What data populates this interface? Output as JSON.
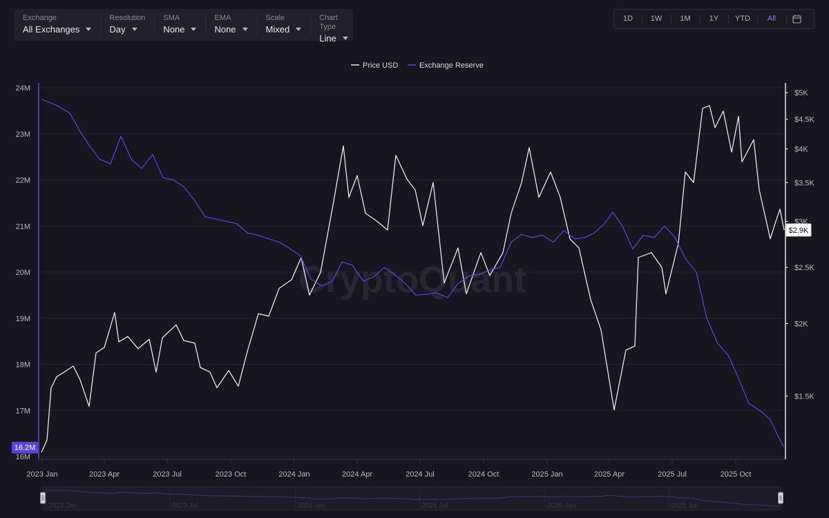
{
  "filters": [
    {
      "label": "Exchange",
      "value": "All Exchanges"
    },
    {
      "label": "Resolution",
      "value": "Day"
    },
    {
      "label": "SMA",
      "value": "None"
    },
    {
      "label": "EMA",
      "value": "None"
    },
    {
      "label": "Scale",
      "value": "Mixed"
    },
    {
      "label": "Chart Type",
      "value": "Line"
    }
  ],
  "ranges": [
    "1D",
    "1W",
    "1M",
    "1Y",
    "YTD",
    "All"
  ],
  "active_range": "All",
  "watermark": "CryptoQuant",
  "chart_data": {
    "type": "line",
    "legend": [
      "Price USD",
      "Exchange Reserve"
    ],
    "x_ticks": [
      "2023 Jan",
      "2023 Apr",
      "2023 Jul",
      "2023 Oct",
      "2024 Jan",
      "2024 Apr",
      "2024 Jul",
      "2024 Oct",
      "2025 Jan",
      "2025 Apr",
      "2025 Jul",
      "2025 Oct"
    ],
    "x_tick_dates": [
      "2023-01-01",
      "2023-04-01",
      "2023-07-01",
      "2023-10-01",
      "2024-01-01",
      "2024-04-01",
      "2024-07-01",
      "2024-10-01",
      "2025-01-01",
      "2025-04-01",
      "2025-07-01",
      "2025-10-01"
    ],
    "xlim": [
      "2022-12-27",
      "2025-12-12"
    ],
    "left_axis": {
      "ticks": [
        "16M",
        "17M",
        "18M",
        "19M",
        "20M",
        "21M",
        "22M",
        "23M",
        "24M"
      ],
      "tick_values": [
        16,
        17,
        18,
        19,
        20,
        21,
        22,
        23,
        24
      ],
      "range": [
        16,
        24
      ],
      "unit": "M",
      "current_label": "16.2M",
      "current_value": 16.2
    },
    "right_axis": {
      "ticks": [
        "$1.5K",
        "$2K",
        "$2.5K",
        "$3K",
        "$3.5K",
        "$4K",
        "$4.5K",
        "$5K"
      ],
      "tick_values": [
        1500,
        2000,
        2500,
        3000,
        3500,
        4000,
        4500,
        5000
      ],
      "scale": "log",
      "range": [
        1180,
        5100
      ],
      "current_label": "$2.9K",
      "current_value": 2900
    },
    "navigator_ticks": [
      "2023 Jan",
      "2023 Jul",
      "2024 Jan",
      "2024 Jul",
      "2025 Jan",
      "2025 Jul"
    ],
    "navigator_tick_dates": [
      "2023-01-01",
      "2023-07-01",
      "2024-01-01",
      "2024-07-01",
      "2025-01-01",
      "2025-07-01"
    ],
    "series": [
      {
        "name": "Price USD",
        "color": "#e8e8ec",
        "axis": "right",
        "points": [
          [
            "2022-12-31",
            1200
          ],
          [
            "2023-01-08",
            1260
          ],
          [
            "2023-01-14",
            1550
          ],
          [
            "2023-01-22",
            1620
          ],
          [
            "2023-02-02",
            1650
          ],
          [
            "2023-02-15",
            1690
          ],
          [
            "2023-02-25",
            1600
          ],
          [
            "2023-03-10",
            1440
          ],
          [
            "2023-03-20",
            1780
          ],
          [
            "2023-04-01",
            1820
          ],
          [
            "2023-04-16",
            2090
          ],
          [
            "2023-04-22",
            1860
          ],
          [
            "2023-05-05",
            1900
          ],
          [
            "2023-05-20",
            1810
          ],
          [
            "2023-06-05",
            1880
          ],
          [
            "2023-06-15",
            1650
          ],
          [
            "2023-06-24",
            1890
          ],
          [
            "2023-07-14",
            1990
          ],
          [
            "2023-07-25",
            1870
          ],
          [
            "2023-08-10",
            1850
          ],
          [
            "2023-08-18",
            1680
          ],
          [
            "2023-09-01",
            1650
          ],
          [
            "2023-09-11",
            1550
          ],
          [
            "2023-09-28",
            1660
          ],
          [
            "2023-10-12",
            1560
          ],
          [
            "2023-10-25",
            1790
          ],
          [
            "2023-11-10",
            2080
          ],
          [
            "2023-11-25",
            2060
          ],
          [
            "2023-12-10",
            2300
          ],
          [
            "2023-12-28",
            2380
          ],
          [
            "2024-01-11",
            2600
          ],
          [
            "2024-01-23",
            2240
          ],
          [
            "2024-02-08",
            2450
          ],
          [
            "2024-02-26",
            3200
          ],
          [
            "2024-03-12",
            4050
          ],
          [
            "2024-03-20",
            3300
          ],
          [
            "2024-04-01",
            3600
          ],
          [
            "2024-04-13",
            3100
          ],
          [
            "2024-04-30",
            3000
          ],
          [
            "2024-05-15",
            2900
          ],
          [
            "2024-05-27",
            3900
          ],
          [
            "2024-06-12",
            3550
          ],
          [
            "2024-06-24",
            3400
          ],
          [
            "2024-07-05",
            2950
          ],
          [
            "2024-07-20",
            3500
          ],
          [
            "2024-08-05",
            2350
          ],
          [
            "2024-08-25",
            2700
          ],
          [
            "2024-09-06",
            2250
          ],
          [
            "2024-09-27",
            2650
          ],
          [
            "2024-10-10",
            2420
          ],
          [
            "2024-10-29",
            2650
          ],
          [
            "2024-11-10",
            3100
          ],
          [
            "2024-11-25",
            3500
          ],
          [
            "2024-12-06",
            4020
          ],
          [
            "2024-12-20",
            3300
          ],
          [
            "2025-01-06",
            3650
          ],
          [
            "2025-01-20",
            3300
          ],
          [
            "2025-02-03",
            2800
          ],
          [
            "2025-02-16",
            2700
          ],
          [
            "2025-03-05",
            2200
          ],
          [
            "2025-03-20",
            1950
          ],
          [
            "2025-04-08",
            1420
          ],
          [
            "2025-04-25",
            1800
          ],
          [
            "2025-05-08",
            1830
          ],
          [
            "2025-05-13",
            2600
          ],
          [
            "2025-06-01",
            2650
          ],
          [
            "2025-06-16",
            2500
          ],
          [
            "2025-06-22",
            2250
          ],
          [
            "2025-07-10",
            2750
          ],
          [
            "2025-07-20",
            3650
          ],
          [
            "2025-08-01",
            3500
          ],
          [
            "2025-08-14",
            4700
          ],
          [
            "2025-08-24",
            4750
          ],
          [
            "2025-09-01",
            4350
          ],
          [
            "2025-09-13",
            4650
          ],
          [
            "2025-09-25",
            3950
          ],
          [
            "2025-10-05",
            4550
          ],
          [
            "2025-10-10",
            3800
          ],
          [
            "2025-10-27",
            4150
          ],
          [
            "2025-11-04",
            3400
          ],
          [
            "2025-11-20",
            2800
          ],
          [
            "2025-11-28",
            3000
          ],
          [
            "2025-12-04",
            3150
          ],
          [
            "2025-12-10",
            2900
          ]
        ]
      },
      {
        "name": "Exchange Reserve",
        "color": "#5b43d6",
        "axis": "left",
        "points": [
          [
            "2022-12-31",
            23.75
          ],
          [
            "2023-01-20",
            23.63
          ],
          [
            "2023-02-10",
            23.45
          ],
          [
            "2023-02-25",
            23.05
          ],
          [
            "2023-03-10",
            22.75
          ],
          [
            "2023-03-25",
            22.45
          ],
          [
            "2023-04-10",
            22.35
          ],
          [
            "2023-04-25",
            22.95
          ],
          [
            "2023-05-10",
            22.45
          ],
          [
            "2023-05-25",
            22.25
          ],
          [
            "2023-06-10",
            22.55
          ],
          [
            "2023-06-25",
            22.05
          ],
          [
            "2023-07-10",
            22.0
          ],
          [
            "2023-07-25",
            21.85
          ],
          [
            "2023-08-10",
            21.55
          ],
          [
            "2023-08-25",
            21.2
          ],
          [
            "2023-09-10",
            21.15
          ],
          [
            "2023-09-25",
            21.1
          ],
          [
            "2023-10-10",
            21.05
          ],
          [
            "2023-10-25",
            20.85
          ],
          [
            "2023-11-10",
            20.8
          ],
          [
            "2023-11-25",
            20.72
          ],
          [
            "2023-12-10",
            20.65
          ],
          [
            "2023-12-25",
            20.52
          ],
          [
            "2024-01-10",
            20.35
          ],
          [
            "2024-01-25",
            19.85
          ],
          [
            "2024-02-10",
            19.7
          ],
          [
            "2024-02-25",
            19.8
          ],
          [
            "2024-03-10",
            20.22
          ],
          [
            "2024-03-25",
            20.15
          ],
          [
            "2024-04-10",
            19.8
          ],
          [
            "2024-04-25",
            19.9
          ],
          [
            "2024-05-10",
            20.1
          ],
          [
            "2024-05-25",
            19.95
          ],
          [
            "2024-06-10",
            19.75
          ],
          [
            "2024-06-25",
            19.5
          ],
          [
            "2024-07-10",
            19.52
          ],
          [
            "2024-07-25",
            19.55
          ],
          [
            "2024-08-10",
            19.45
          ],
          [
            "2024-08-25",
            19.75
          ],
          [
            "2024-09-10",
            19.92
          ],
          [
            "2024-09-25",
            19.95
          ],
          [
            "2024-10-10",
            20.05
          ],
          [
            "2024-10-25",
            20.1
          ],
          [
            "2024-11-10",
            20.65
          ],
          [
            "2024-11-25",
            20.82
          ],
          [
            "2024-12-10",
            20.75
          ],
          [
            "2024-12-25",
            20.8
          ],
          [
            "2025-01-10",
            20.65
          ],
          [
            "2025-01-25",
            20.9
          ],
          [
            "2025-02-10",
            20.72
          ],
          [
            "2025-02-25",
            20.75
          ],
          [
            "2025-03-10",
            20.85
          ],
          [
            "2025-03-25",
            21.05
          ],
          [
            "2025-04-06",
            21.3
          ],
          [
            "2025-04-20",
            21.0
          ],
          [
            "2025-05-05",
            20.5
          ],
          [
            "2025-05-20",
            20.8
          ],
          [
            "2025-06-05",
            20.75
          ],
          [
            "2025-06-20",
            21.0
          ],
          [
            "2025-07-05",
            20.75
          ],
          [
            "2025-07-20",
            20.3
          ],
          [
            "2025-08-05",
            20.0
          ],
          [
            "2025-08-20",
            19.0
          ],
          [
            "2025-09-05",
            18.45
          ],
          [
            "2025-09-20",
            18.2
          ],
          [
            "2025-10-05",
            17.7
          ],
          [
            "2025-10-20",
            17.15
          ],
          [
            "2025-11-05",
            17.0
          ],
          [
            "2025-11-20",
            16.8
          ],
          [
            "2025-12-01",
            16.45
          ],
          [
            "2025-12-10",
            16.2
          ]
        ]
      }
    ]
  }
}
